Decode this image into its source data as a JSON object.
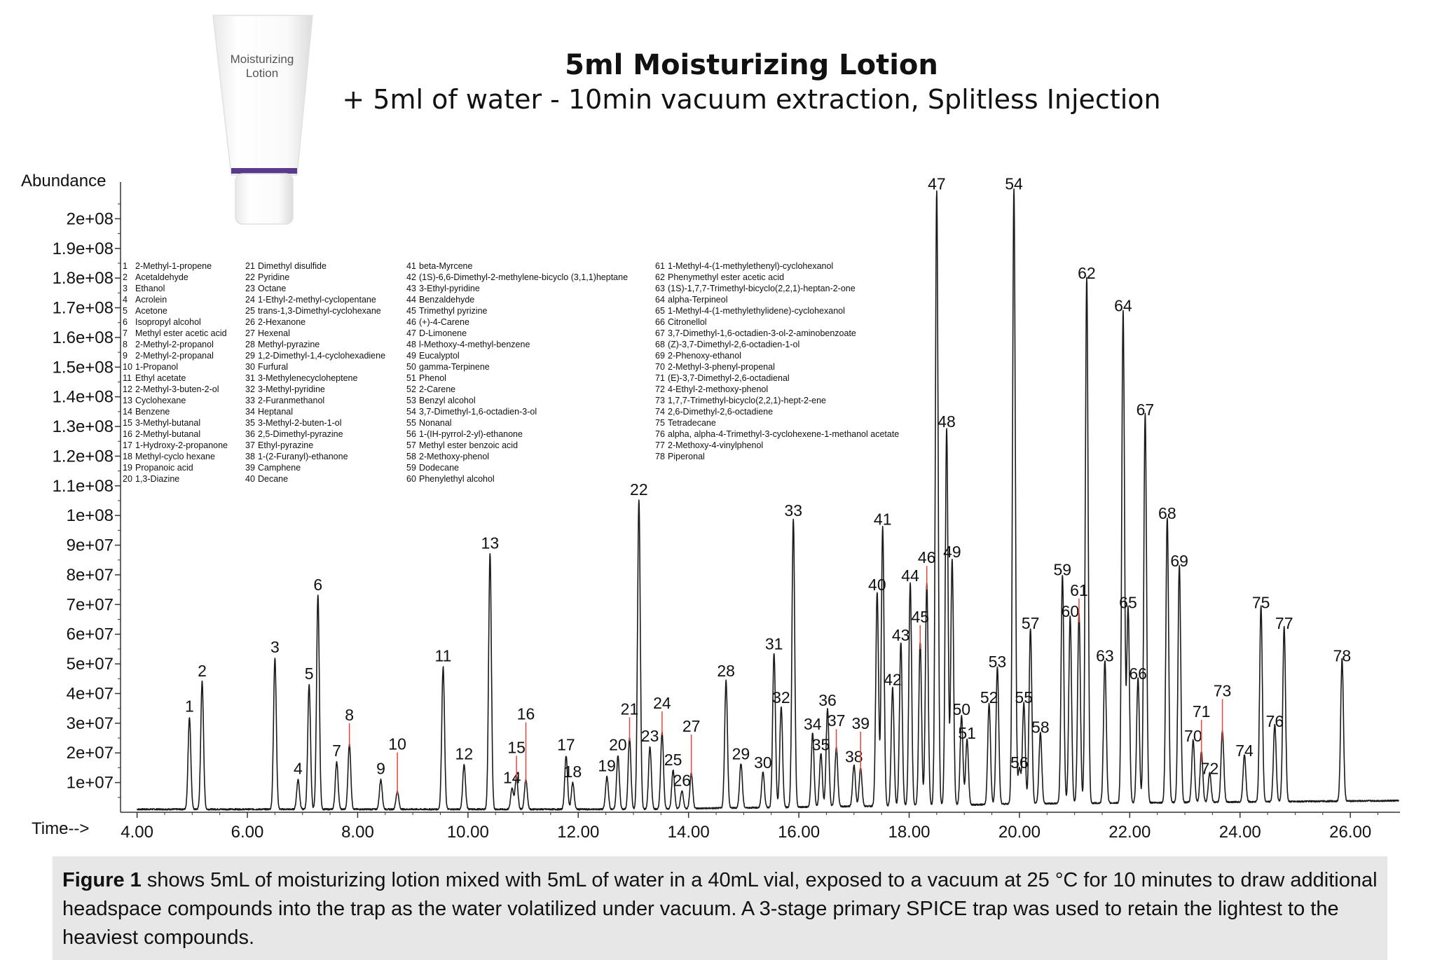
{
  "figure": {
    "product_label_line1": "Moisturizing",
    "product_label_line2": "Lotion",
    "title": "5ml Moisturizing Lotion",
    "subtitle": "+ 5ml of water - 10min vacuum extraction, Splitless Injection",
    "caption_bold": "Figure 1",
    "caption_text": " shows 5mL of moisturizing lotion mixed with 5mL of water in a 40mL vial, exposed to a vacuum at 25 °C for 10 minutes to draw additional headspace compounds into the trap as the water volatilized under vacuum. A 3-stage primary SPICE trap was used to retain the lightest to the heaviest compounds."
  },
  "colors": {
    "trace": "#1a1a1a",
    "leader": "#e8463a",
    "purple_band": "#5b3a8c",
    "caption_bg": "#e7e7e7"
  },
  "chart_data": {
    "type": "line",
    "xlabel": "Time-->",
    "ylabel": "Abundance",
    "xlim": [
      3.7,
      26.9
    ],
    "ylim": [
      0,
      210000000
    ],
    "x_ticks": [
      4,
      6,
      8,
      10,
      12,
      14,
      16,
      18,
      20,
      22,
      24,
      26
    ],
    "x_tick_labels": [
      "4.00",
      "6.00",
      "8.00",
      "10.00",
      "12.00",
      "14.00",
      "16.00",
      "18.00",
      "20.00",
      "22.00",
      "24.00",
      "26.00"
    ],
    "y_ticks": [
      10000000,
      20000000,
      30000000,
      40000000,
      50000000,
      60000000,
      70000000,
      80000000,
      90000000,
      100000000,
      110000000,
      120000000,
      130000000,
      140000000,
      150000000,
      160000000,
      170000000,
      180000000,
      190000000,
      200000000
    ],
    "y_tick_labels": [
      "1e+07",
      "2e+07",
      "3e+07",
      "4e+07",
      "5e+07",
      "6e+07",
      "7e+07",
      "8e+07",
      "9e+07",
      "1e+08",
      "1.1e+08",
      "1.2e+08",
      "1.3e+08",
      "1.4e+08",
      "1.5e+08",
      "1.6e+08",
      "1.7e+08",
      "1.8e+08",
      "1.9e+08",
      "2e+08"
    ],
    "baseline": 1000000,
    "peaks": [
      {
        "label": "1",
        "rt": 4.95,
        "height": 31000000
      },
      {
        "label": "2",
        "rt": 5.18,
        "height": 43000000
      },
      {
        "label": "3",
        "rt": 6.5,
        "height": 51000000
      },
      {
        "label": "4",
        "rt": 6.92,
        "height": 10000000
      },
      {
        "label": "5",
        "rt": 7.12,
        "height": 42000000
      },
      {
        "label": "6",
        "rt": 7.28,
        "height": 72000000
      },
      {
        "label": "7",
        "rt": 7.62,
        "height": 16000000
      },
      {
        "label": "8",
        "rt": 7.85,
        "height": 22000000
      },
      {
        "label": "9",
        "rt": 8.42,
        "height": 10000000
      },
      {
        "label": "10",
        "rt": 8.72,
        "height": 6000000
      },
      {
        "label": "11",
        "rt": 9.55,
        "height": 48000000
      },
      {
        "label": "12",
        "rt": 9.93,
        "height": 15000000
      },
      {
        "label": "13",
        "rt": 10.4,
        "height": 86000000
      },
      {
        "label": "14",
        "rt": 10.8,
        "height": 7000000
      },
      {
        "label": "15",
        "rt": 10.88,
        "height": 11000000
      },
      {
        "label": "16",
        "rt": 11.05,
        "height": 10000000
      },
      {
        "label": "17",
        "rt": 11.78,
        "height": 18000000
      },
      {
        "label": "18",
        "rt": 11.9,
        "height": 9000000
      },
      {
        "label": "19",
        "rt": 12.52,
        "height": 11000000
      },
      {
        "label": "20",
        "rt": 12.72,
        "height": 18000000
      },
      {
        "label": "21",
        "rt": 12.93,
        "height": 24000000
      },
      {
        "label": "22",
        "rt": 13.1,
        "height": 104000000
      },
      {
        "label": "23",
        "rt": 13.3,
        "height": 21000000
      },
      {
        "label": "24",
        "rt": 13.52,
        "height": 26000000
      },
      {
        "label": "25",
        "rt": 13.72,
        "height": 13000000
      },
      {
        "label": "26",
        "rt": 13.88,
        "height": 6000000
      },
      {
        "label": "27",
        "rt": 14.05,
        "height": 12000000
      },
      {
        "label": "28",
        "rt": 14.68,
        "height": 43000000
      },
      {
        "label": "29",
        "rt": 14.95,
        "height": 15000000
      },
      {
        "label": "30",
        "rt": 15.35,
        "height": 12000000
      },
      {
        "label": "31",
        "rt": 15.55,
        "height": 52000000
      },
      {
        "label": "32",
        "rt": 15.68,
        "height": 34000000
      },
      {
        "label": "33",
        "rt": 15.9,
        "height": 97000000
      },
      {
        "label": "34",
        "rt": 16.25,
        "height": 25000000
      },
      {
        "label": "35",
        "rt": 16.4,
        "height": 18000000
      },
      {
        "label": "36",
        "rt": 16.52,
        "height": 33000000
      },
      {
        "label": "37",
        "rt": 16.68,
        "height": 20000000
      },
      {
        "label": "38",
        "rt": 17.0,
        "height": 14000000
      },
      {
        "label": "39",
        "rt": 17.12,
        "height": 13000000
      },
      {
        "label": "40",
        "rt": 17.42,
        "height": 72000000
      },
      {
        "label": "41",
        "rt": 17.52,
        "height": 94000000
      },
      {
        "label": "42",
        "rt": 17.7,
        "height": 40000000
      },
      {
        "label": "43",
        "rt": 17.85,
        "height": 55000000
      },
      {
        "label": "44",
        "rt": 18.02,
        "height": 75000000
      },
      {
        "label": "45",
        "rt": 18.2,
        "height": 55000000
      },
      {
        "label": "46",
        "rt": 18.32,
        "height": 75000000
      },
      {
        "label": "47",
        "rt": 18.5,
        "height": 207000000
      },
      {
        "label": "48",
        "rt": 18.68,
        "height": 127000000
      },
      {
        "label": "49",
        "rt": 18.78,
        "height": 83000000
      },
      {
        "label": "50",
        "rt": 18.95,
        "height": 30000000
      },
      {
        "label": "51",
        "rt": 19.05,
        "height": 22000000
      },
      {
        "label": "52",
        "rt": 19.45,
        "height": 34000000
      },
      {
        "label": "53",
        "rt": 19.6,
        "height": 46000000
      },
      {
        "label": "54",
        "rt": 19.9,
        "height": 207000000
      },
      {
        "label": "55",
        "rt": 20.08,
        "height": 34000000
      },
      {
        "label": "56",
        "rt": 20.0,
        "height": 12000000
      },
      {
        "label": "57",
        "rt": 20.2,
        "height": 59000000
      },
      {
        "label": "58",
        "rt": 20.38,
        "height": 24000000
      },
      {
        "label": "59",
        "rt": 20.78,
        "height": 77000000
      },
      {
        "label": "60",
        "rt": 20.92,
        "height": 63000000
      },
      {
        "label": "61",
        "rt": 21.08,
        "height": 64000000
      },
      {
        "label": "62",
        "rt": 21.22,
        "height": 177000000
      },
      {
        "label": "63",
        "rt": 21.55,
        "height": 48000000
      },
      {
        "label": "64",
        "rt": 21.88,
        "height": 166000000
      },
      {
        "label": "65",
        "rt": 21.97,
        "height": 66000000
      },
      {
        "label": "66",
        "rt": 22.15,
        "height": 42000000
      },
      {
        "label": "67",
        "rt": 22.28,
        "height": 131000000
      },
      {
        "label": "68",
        "rt": 22.68,
        "height": 96000000
      },
      {
        "label": "69",
        "rt": 22.9,
        "height": 80000000
      },
      {
        "label": "70",
        "rt": 23.15,
        "height": 21000000
      },
      {
        "label": "71",
        "rt": 23.3,
        "height": 17000000
      },
      {
        "label": "72",
        "rt": 23.45,
        "height": 10000000
      },
      {
        "label": "73",
        "rt": 23.68,
        "height": 24000000
      },
      {
        "label": "74",
        "rt": 24.08,
        "height": 16000000
      },
      {
        "label": "75",
        "rt": 24.38,
        "height": 66000000
      },
      {
        "label": "76",
        "rt": 24.63,
        "height": 26000000
      },
      {
        "label": "77",
        "rt": 24.8,
        "height": 59000000
      },
      {
        "label": "78",
        "rt": 25.85,
        "height": 48000000
      }
    ],
    "compounds": [
      {
        "n": "1",
        "name": "2-Methyl-1-propene"
      },
      {
        "n": "2",
        "name": "Acetaldehyde"
      },
      {
        "n": "3",
        "name": "Ethanol"
      },
      {
        "n": "4",
        "name": "Acrolein"
      },
      {
        "n": "5",
        "name": "Acetone"
      },
      {
        "n": "6",
        "name": "Isopropyl alcohol"
      },
      {
        "n": "7",
        "name": "Methyl ester acetic acid"
      },
      {
        "n": "8",
        "name": "2-Methyl-2-propanol"
      },
      {
        "n": "9",
        "name": "2-Methyl-2-propanal"
      },
      {
        "n": "10",
        "name": "1-Propanol"
      },
      {
        "n": "11",
        "name": "Ethyl acetate"
      },
      {
        "n": "12",
        "name": "2-Methyl-3-buten-2-ol"
      },
      {
        "n": "13",
        "name": "Cyclohexane"
      },
      {
        "n": "14",
        "name": "Benzene"
      },
      {
        "n": "15",
        "name": "3-Methyl-butanal"
      },
      {
        "n": "16",
        "name": "2-Methyl-butanal"
      },
      {
        "n": "17",
        "name": "1-Hydroxy-2-propanone"
      },
      {
        "n": "18",
        "name": "Methyl-cyclo hexane"
      },
      {
        "n": "19",
        "name": "Propanoic acid"
      },
      {
        "n": "20",
        "name": "1,3-Diazine"
      },
      {
        "n": "21",
        "name": "Dimethyl disulfide"
      },
      {
        "n": "22",
        "name": "Pyridine"
      },
      {
        "n": "23",
        "name": "Octane"
      },
      {
        "n": "24",
        "name": "1-Ethyl-2-methyl-cyclopentane"
      },
      {
        "n": "25",
        "name": "trans-1,3-Dimethyl-cyclohexane"
      },
      {
        "n": "26",
        "name": "2-Hexanone"
      },
      {
        "n": "27",
        "name": "Hexenal"
      },
      {
        "n": "28",
        "name": "Methyl-pyrazine"
      },
      {
        "n": "29",
        "name": "1,2-Dimethyl-1,4-cyclohexadiene"
      },
      {
        "n": "30",
        "name": "Furfural"
      },
      {
        "n": "31",
        "name": "3-Methylenecycloheptene"
      },
      {
        "n": "32",
        "name": "3-Methyl-pyridine"
      },
      {
        "n": "33",
        "name": "2-Furanmethanol"
      },
      {
        "n": "34",
        "name": "Heptanal"
      },
      {
        "n": "35",
        "name": "3-Methyl-2-buten-1-ol"
      },
      {
        "n": "36",
        "name": "2,5-Dimethyl-pyrazine"
      },
      {
        "n": "37",
        "name": "Ethyl-pyrazine"
      },
      {
        "n": "38",
        "name": "1-(2-Furanyl)-ethanone"
      },
      {
        "n": "39",
        "name": "Camphene"
      },
      {
        "n": "40",
        "name": "Decane"
      },
      {
        "n": "41",
        "name": "beta-Myrcene"
      },
      {
        "n": "42",
        "name": "(1S)-6,6-Dimethyl-2-methylene-bicyclo (3,1,1)heptane"
      },
      {
        "n": "43",
        "name": "3-Ethyl-pyridine"
      },
      {
        "n": "44",
        "name": "Benzaldehyde"
      },
      {
        "n": "45",
        "name": "Trimethyl pyrizine"
      },
      {
        "n": "46",
        "name": "(+)-4-Carene"
      },
      {
        "n": "47",
        "name": "D-Limonene"
      },
      {
        "n": "48",
        "name": "l-Methoxy-4-methyl-benzene"
      },
      {
        "n": "49",
        "name": "Eucalyptol"
      },
      {
        "n": "50",
        "name": "gamma-Terpinene"
      },
      {
        "n": "51",
        "name": "Phenol"
      },
      {
        "n": "52",
        "name": "2-Carene"
      },
      {
        "n": "53",
        "name": "Benzyl alcohol"
      },
      {
        "n": "54",
        "name": "3,7-Dimethyl-1,6-octadien-3-ol"
      },
      {
        "n": "55",
        "name": "Nonanal"
      },
      {
        "n": "56",
        "name": "1-(IH-pyrrol-2-yl)-ethanone"
      },
      {
        "n": "57",
        "name": "Methyl ester benzoic acid"
      },
      {
        "n": "58",
        "name": "2-Methoxy-phenol"
      },
      {
        "n": "59",
        "name": "Dodecane"
      },
      {
        "n": "60",
        "name": "Phenylethyl alcohol"
      },
      {
        "n": "61",
        "name": "1-Methyl-4-(1-methylethenyl)-cyclohexanol"
      },
      {
        "n": "62",
        "name": "Phenymethyl ester acetic acid"
      },
      {
        "n": "63",
        "name": "(1S)-1,7,7-Trimethyl-bicyclo(2,2,1)-heptan-2-one"
      },
      {
        "n": "64",
        "name": "alpha-Terpineol"
      },
      {
        "n": "65",
        "name": "1-Methyl-4-(1-methylethylidene)-cyclohexanol"
      },
      {
        "n": "66",
        "name": "Citronellol"
      },
      {
        "n": "67",
        "name": "3,7-Dimethyl-1,6-octadien-3-ol-2-aminobenzoate"
      },
      {
        "n": "68",
        "name": "(Z)-3,7-Dimethyl-2,6-octadien-1-ol"
      },
      {
        "n": "69",
        "name": "2-Phenoxy-ethanol"
      },
      {
        "n": "70",
        "name": "2-Methyl-3-phenyl-propenal"
      },
      {
        "n": "71",
        "name": "(E)-3,7-Dimethyl-2,6-octadienal"
      },
      {
        "n": "72",
        "name": "4-Ethyl-2-methoxy-phenol"
      },
      {
        "n": "73",
        "name": "1,7,7-Trimethyl-bicyclo(2,2,1)-hept-2-ene"
      },
      {
        "n": "74",
        "name": "2,6-Dimethyl-2,6-octadiene"
      },
      {
        "n": "75",
        "name": "Tetradecane"
      },
      {
        "n": "76",
        "name": "alpha, alpha-4-Trimethyl-3-cyclohexene-1-methanol acetate"
      },
      {
        "n": "77",
        "name": "2-Methoxy-4-vinylphenol"
      },
      {
        "n": "78",
        "name": "Piperonal"
      }
    ]
  }
}
